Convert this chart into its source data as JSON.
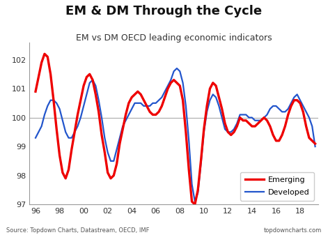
{
  "title": "EM & DM Through the Cycle",
  "subtitle": "EM vs DM OECD leading economic indicators",
  "source_left": "Source: Topdown Charts, Datastream, OECD, IMF",
  "source_right": "topdowncharts.com",
  "xlim": [
    1995.5,
    2019.5
  ],
  "ylim": [
    97,
    102.6
  ],
  "yticks": [
    97,
    98,
    99,
    100,
    101,
    102
  ],
  "hline_y": 100.0,
  "em_color": "#ee0000",
  "dm_color": "#2255cc",
  "em_label": "Emerging",
  "dm_label": "Developed",
  "em_linewidth": 2.4,
  "dm_linewidth": 1.6,
  "background_color": "#ffffff",
  "title_fontsize": 13,
  "subtitle_fontsize": 9,
  "x_years": [
    1996.0,
    1996.25,
    1996.5,
    1996.75,
    1997.0,
    1997.25,
    1997.5,
    1997.75,
    1998.0,
    1998.25,
    1998.5,
    1998.75,
    1999.0,
    1999.25,
    1999.5,
    1999.75,
    2000.0,
    2000.25,
    2000.5,
    2000.75,
    2001.0,
    2001.25,
    2001.5,
    2001.75,
    2002.0,
    2002.25,
    2002.5,
    2002.75,
    2003.0,
    2003.25,
    2003.5,
    2003.75,
    2004.0,
    2004.25,
    2004.5,
    2004.75,
    2005.0,
    2005.25,
    2005.5,
    2005.75,
    2006.0,
    2006.25,
    2006.5,
    2006.75,
    2007.0,
    2007.25,
    2007.5,
    2007.75,
    2008.0,
    2008.25,
    2008.5,
    2008.75,
    2009.0,
    2009.25,
    2009.5,
    2009.75,
    2010.0,
    2010.25,
    2010.5,
    2010.75,
    2011.0,
    2011.25,
    2011.5,
    2011.75,
    2012.0,
    2012.25,
    2012.5,
    2012.75,
    2013.0,
    2013.25,
    2013.5,
    2013.75,
    2014.0,
    2014.25,
    2014.5,
    2014.75,
    2015.0,
    2015.25,
    2015.5,
    2015.75,
    2016.0,
    2016.25,
    2016.5,
    2016.75,
    2017.0,
    2017.25,
    2017.5,
    2017.75,
    2018.0,
    2018.25,
    2018.5,
    2018.75,
    2019.0,
    2019.25
  ],
  "em_values": [
    100.9,
    101.4,
    101.9,
    102.2,
    102.1,
    101.5,
    100.6,
    99.6,
    98.7,
    98.1,
    97.9,
    98.2,
    98.9,
    99.5,
    100.1,
    100.6,
    101.1,
    101.4,
    101.5,
    101.3,
    100.8,
    100.2,
    99.4,
    98.8,
    98.1,
    97.9,
    98.0,
    98.4,
    99.1,
    99.6,
    100.1,
    100.5,
    100.7,
    100.8,
    100.9,
    100.8,
    100.6,
    100.4,
    100.2,
    100.1,
    100.1,
    100.2,
    100.4,
    100.7,
    101.0,
    101.2,
    101.3,
    101.2,
    101.1,
    100.6,
    99.5,
    98.2,
    97.1,
    97.0,
    97.5,
    98.5,
    99.6,
    100.4,
    101.0,
    101.2,
    101.1,
    100.7,
    100.3,
    99.8,
    99.5,
    99.4,
    99.5,
    99.7,
    100.0,
    99.9,
    99.9,
    99.8,
    99.7,
    99.7,
    99.8,
    99.9,
    100.0,
    99.9,
    99.7,
    99.4,
    99.2,
    99.2,
    99.4,
    99.7,
    100.1,
    100.4,
    100.6,
    100.6,
    100.5,
    100.2,
    99.7,
    99.3,
    99.2,
    99.1
  ],
  "dm_values": [
    99.3,
    99.5,
    99.7,
    100.1,
    100.4,
    100.6,
    100.6,
    100.5,
    100.3,
    99.9,
    99.5,
    99.3,
    99.3,
    99.5,
    99.7,
    100.0,
    100.4,
    100.8,
    101.2,
    101.3,
    101.1,
    100.6,
    100.0,
    99.3,
    98.8,
    98.5,
    98.5,
    98.9,
    99.3,
    99.7,
    99.9,
    100.1,
    100.3,
    100.5,
    100.5,
    100.5,
    100.4,
    100.4,
    100.4,
    100.5,
    100.5,
    100.6,
    100.7,
    100.9,
    101.1,
    101.3,
    101.6,
    101.7,
    101.6,
    101.2,
    100.4,
    99.2,
    97.7,
    97.1,
    97.4,
    98.4,
    99.5,
    100.2,
    100.6,
    100.8,
    100.7,
    100.4,
    100.0,
    99.6,
    99.5,
    99.5,
    99.6,
    99.8,
    100.1,
    100.1,
    100.1,
    100.0,
    100.0,
    99.9,
    99.9,
    99.9,
    100.0,
    100.1,
    100.3,
    100.4,
    100.4,
    100.3,
    100.2,
    100.2,
    100.3,
    100.5,
    100.7,
    100.8,
    100.6,
    100.4,
    100.2,
    100.0,
    99.7,
    99.0
  ]
}
